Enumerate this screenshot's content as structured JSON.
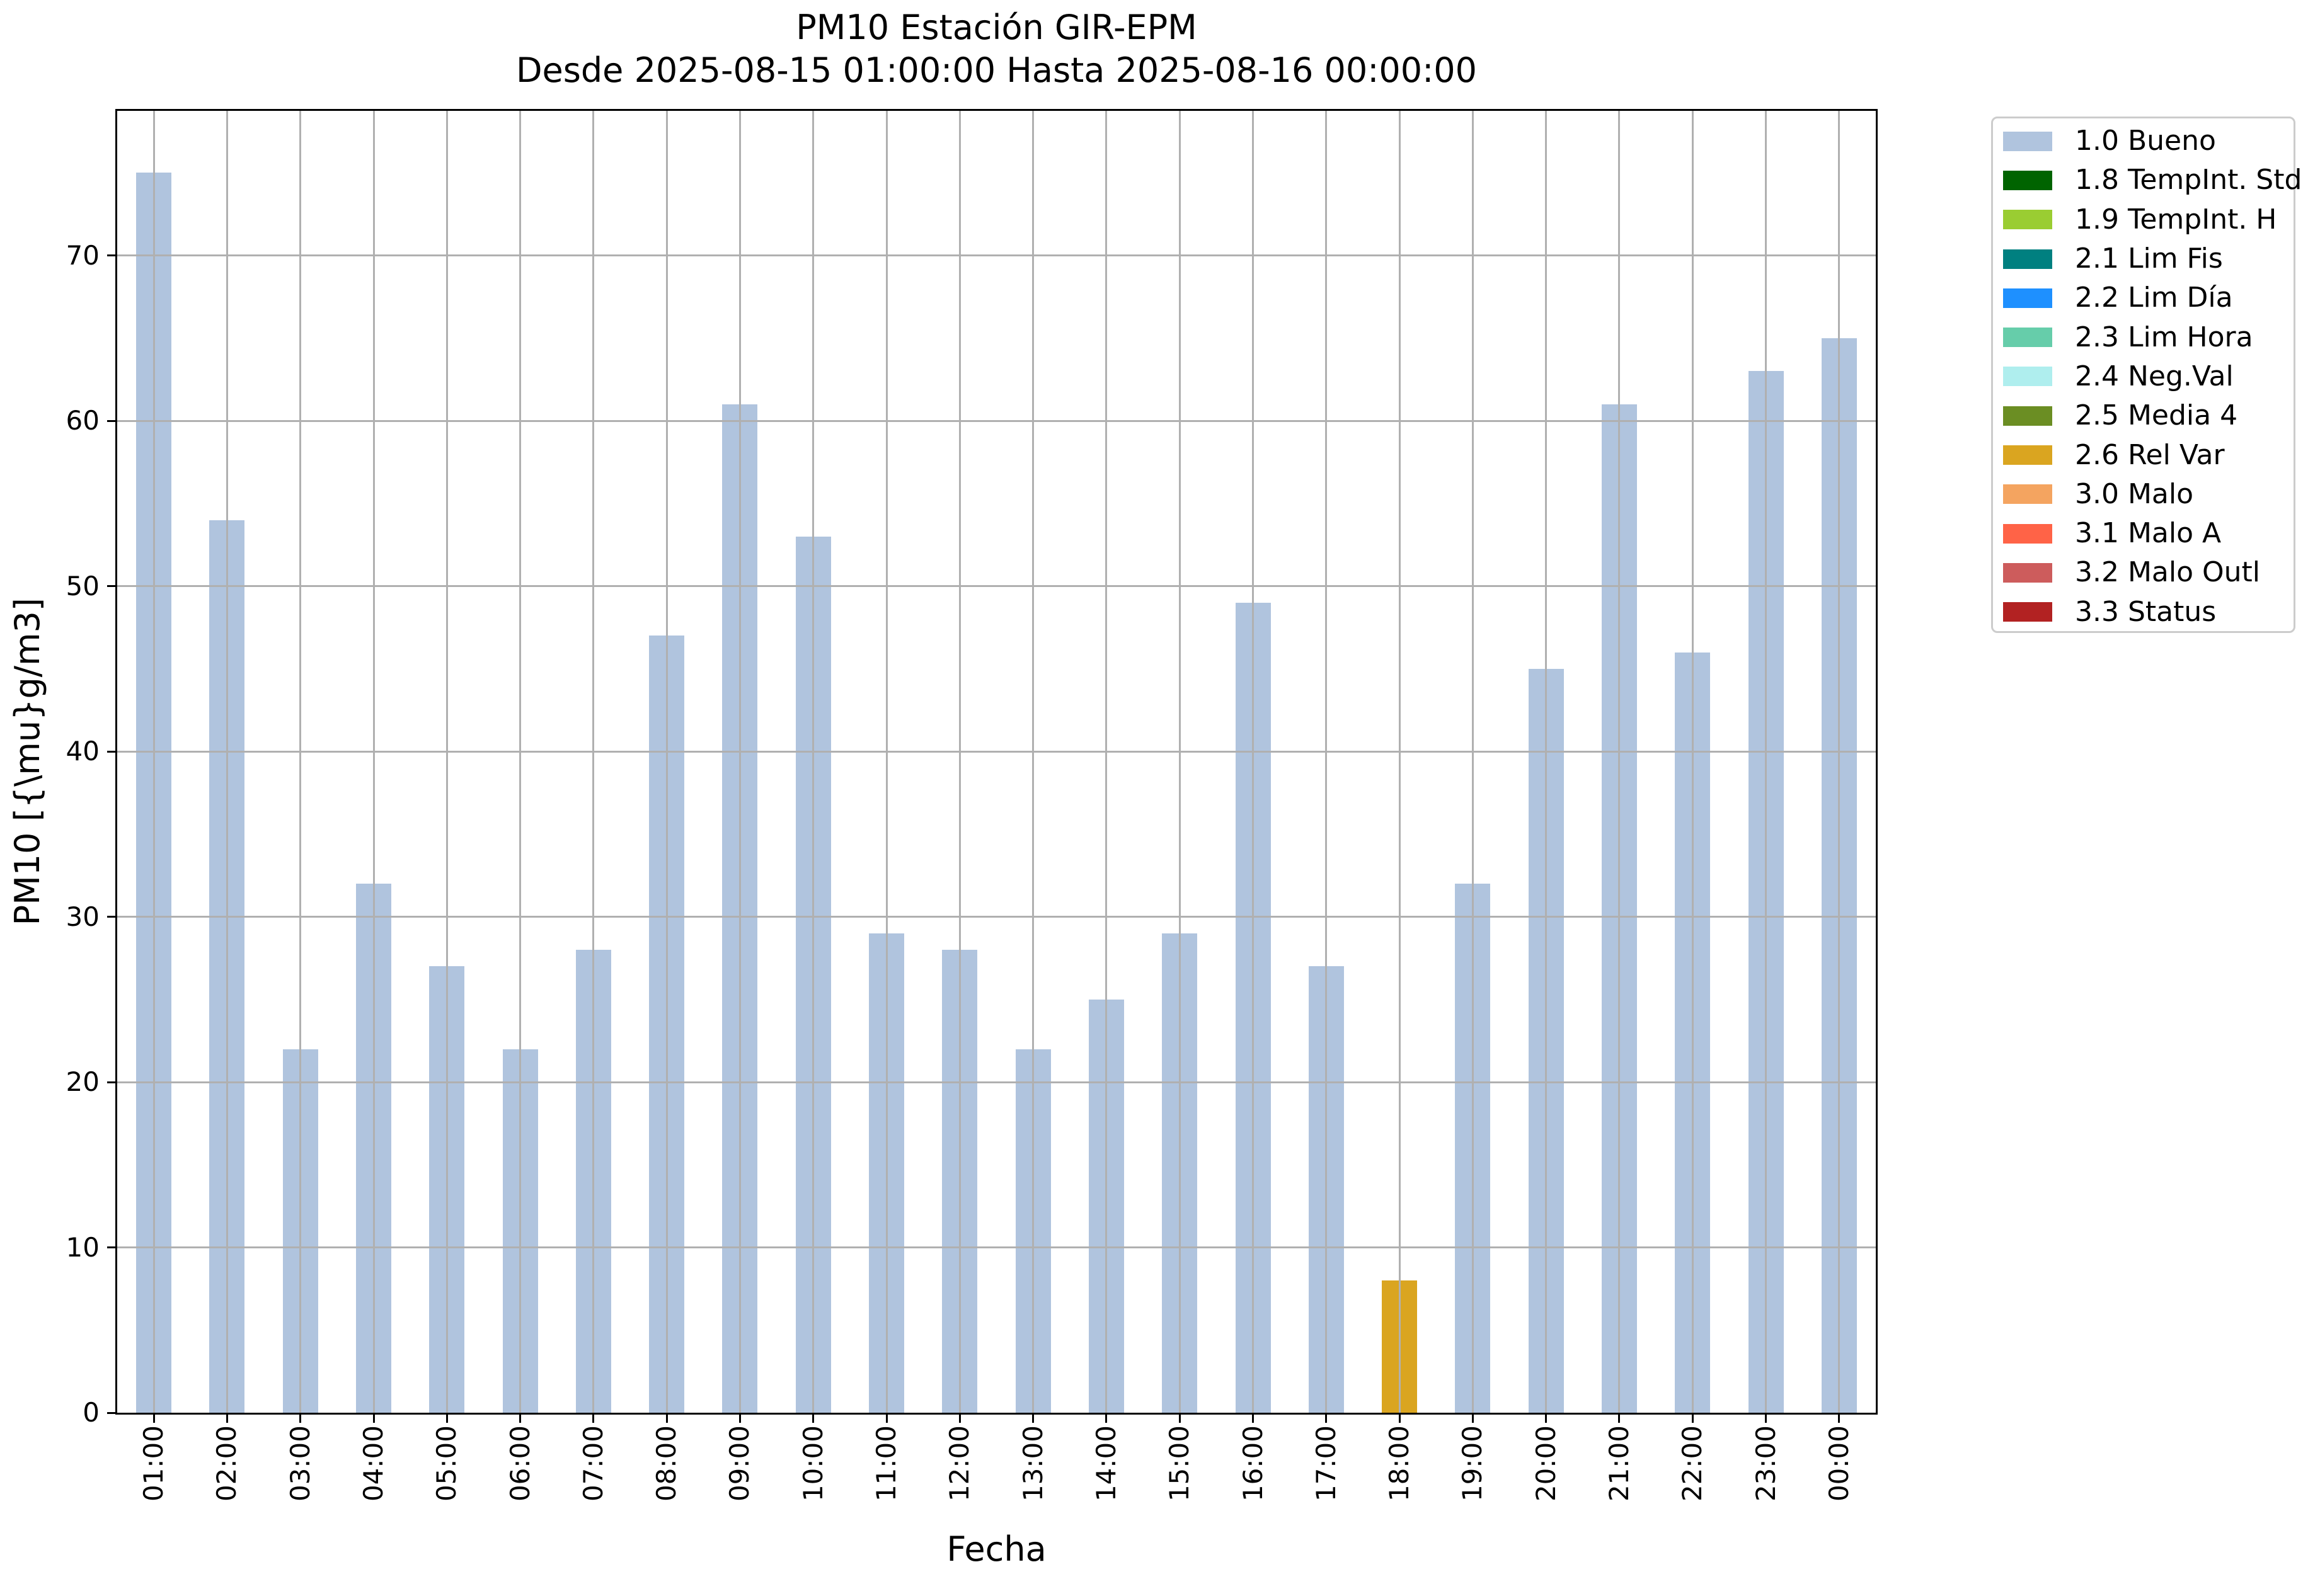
{
  "chart_data": {
    "type": "bar",
    "title": "PM10 Estación GIR-EPM",
    "subtitle": "Desde 2025-08-15 01:00:00 Hasta 2025-08-16 00:00:00",
    "xlabel": "Fecha",
    "ylabel": "PM10 [{\\mu}g/m3]",
    "categories": [
      "01:00",
      "02:00",
      "03:00",
      "04:00",
      "05:00",
      "06:00",
      "07:00",
      "08:00",
      "09:00",
      "10:00",
      "11:00",
      "12:00",
      "13:00",
      "14:00",
      "15:00",
      "16:00",
      "17:00",
      "18:00",
      "19:00",
      "20:00",
      "21:00",
      "22:00",
      "23:00",
      "00:00"
    ],
    "values": [
      75,
      54,
      22,
      32,
      27,
      22,
      28,
      47,
      61,
      53,
      29,
      28,
      22,
      25,
      29,
      49,
      27,
      8,
      32,
      45,
      61,
      46,
      63,
      65
    ],
    "bar_flags": [
      "1.0 Bueno",
      "1.0 Bueno",
      "1.0 Bueno",
      "1.0 Bueno",
      "1.0 Bueno",
      "1.0 Bueno",
      "1.0 Bueno",
      "1.0 Bueno",
      "1.0 Bueno",
      "1.0 Bueno",
      "1.0 Bueno",
      "1.0 Bueno",
      "1.0 Bueno",
      "1.0 Bueno",
      "1.0 Bueno",
      "1.0 Bueno",
      "1.0 Bueno",
      "2.6 Rel Var",
      "1.0 Bueno",
      "1.0 Bueno",
      "1.0 Bueno",
      "1.0 Bueno",
      "1.0 Bueno",
      "1.0 Bueno"
    ],
    "bar_color_default": "#b0c4de",
    "bar_color_overrides": {
      "17": "#daa520"
    },
    "yticks": [
      0,
      10,
      20,
      30,
      40,
      50,
      60,
      70
    ],
    "ylim": [
      0,
      78.75
    ],
    "grid": true,
    "grid_color": "#b0b0b0",
    "legend_position": "right",
    "legend_entries": [
      {
        "label": "1.0 Bueno",
        "color": "#b0c4de"
      },
      {
        "label": "1.8 TempInt. Std",
        "color": "#006400"
      },
      {
        "label": "1.9 TempInt. H",
        "color": "#9acd32"
      },
      {
        "label": "2.1 Lim Fis",
        "color": "#008080"
      },
      {
        "label": "2.2 Lim Día",
        "color": "#1e90ff"
      },
      {
        "label": "2.3 Lim Hora",
        "color": "#66cdaa"
      },
      {
        "label": "2.4 Neg.Val",
        "color": "#afeeee"
      },
      {
        "label": "2.5 Media 4",
        "color": "#6b8e23"
      },
      {
        "label": "2.6 Rel Var",
        "color": "#daa520"
      },
      {
        "label": "3.0 Malo",
        "color": "#f4a460"
      },
      {
        "label": "3.1 Malo A",
        "color": "#ff6347"
      },
      {
        "label": "3.2 Malo Outl",
        "color": "#cd5c5c"
      },
      {
        "label": "3.3 Status",
        "color": "#b22222"
      }
    ]
  }
}
